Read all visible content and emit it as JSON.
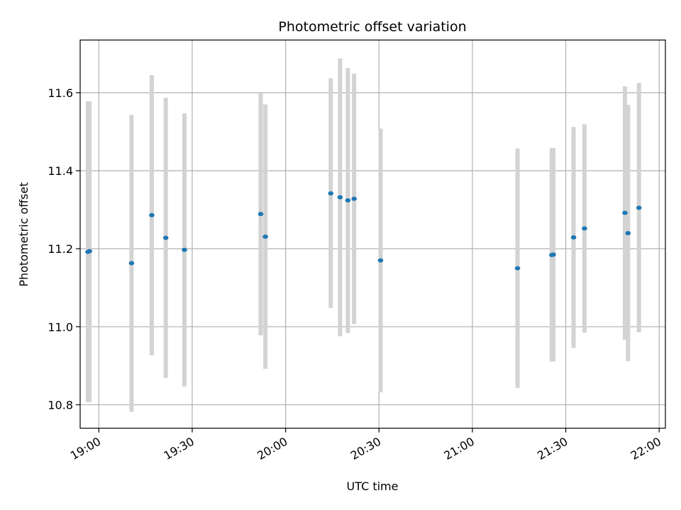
{
  "chart_data": {
    "type": "scatter",
    "title": "Photometric offset variation",
    "xlabel": "UTC time",
    "ylabel": "Photometric offset",
    "x_scale": "time",
    "xlim": [
      "18:54",
      "22:02"
    ],
    "ylim": [
      10.74,
      11.735
    ],
    "x_ticks": [
      "19:00",
      "19:30",
      "20:00",
      "20:30",
      "21:00",
      "21:30",
      "22:00"
    ],
    "y_ticks": [
      10.8,
      11.0,
      11.2,
      11.4,
      11.6
    ],
    "grid": true,
    "point_color": "#1f77b4",
    "errorbar_color": "#d3d3d3",
    "points": [
      {
        "time": "18:56:30",
        "value": 11.192,
        "low": 10.807,
        "high": 11.578
      },
      {
        "time": "18:57:00",
        "value": 11.194,
        "low": 10.807,
        "high": 11.578
      },
      {
        "time": "19:10:30",
        "value": 11.163,
        "low": 10.782,
        "high": 11.543
      },
      {
        "time": "19:17:00",
        "value": 11.286,
        "low": 10.927,
        "high": 11.645
      },
      {
        "time": "19:21:30",
        "value": 11.228,
        "low": 10.869,
        "high": 11.587
      },
      {
        "time": "19:27:30",
        "value": 11.197,
        "low": 10.847,
        "high": 11.547
      },
      {
        "time": "19:52:00",
        "value": 11.289,
        "low": 10.978,
        "high": 11.6
      },
      {
        "time": "19:53:30",
        "value": 11.231,
        "low": 10.892,
        "high": 11.57
      },
      {
        "time": "20:14:30",
        "value": 11.342,
        "low": 11.048,
        "high": 11.637
      },
      {
        "time": "20:17:30",
        "value": 11.332,
        "low": 10.976,
        "high": 11.688
      },
      {
        "time": "20:20:00",
        "value": 11.324,
        "low": 10.984,
        "high": 11.663
      },
      {
        "time": "20:22:00",
        "value": 11.328,
        "low": 11.007,
        "high": 11.649
      },
      {
        "time": "20:30:30",
        "value": 11.17,
        "low": 10.832,
        "high": 11.508
      },
      {
        "time": "21:14:30",
        "value": 11.15,
        "low": 10.843,
        "high": 11.457
      },
      {
        "time": "21:25:30",
        "value": 11.184,
        "low": 10.911,
        "high": 11.458
      },
      {
        "time": "21:26:00",
        "value": 11.185,
        "low": 10.911,
        "high": 11.458
      },
      {
        "time": "21:32:30",
        "value": 11.229,
        "low": 10.946,
        "high": 11.512
      },
      {
        "time": "21:36:00",
        "value": 11.252,
        "low": 10.985,
        "high": 11.519
      },
      {
        "time": "21:49:00",
        "value": 11.292,
        "low": 10.967,
        "high": 11.616
      },
      {
        "time": "21:50:00",
        "value": 11.24,
        "low": 10.912,
        "high": 11.569
      },
      {
        "time": "21:53:30",
        "value": 11.305,
        "low": 10.986,
        "high": 11.625
      }
    ]
  }
}
